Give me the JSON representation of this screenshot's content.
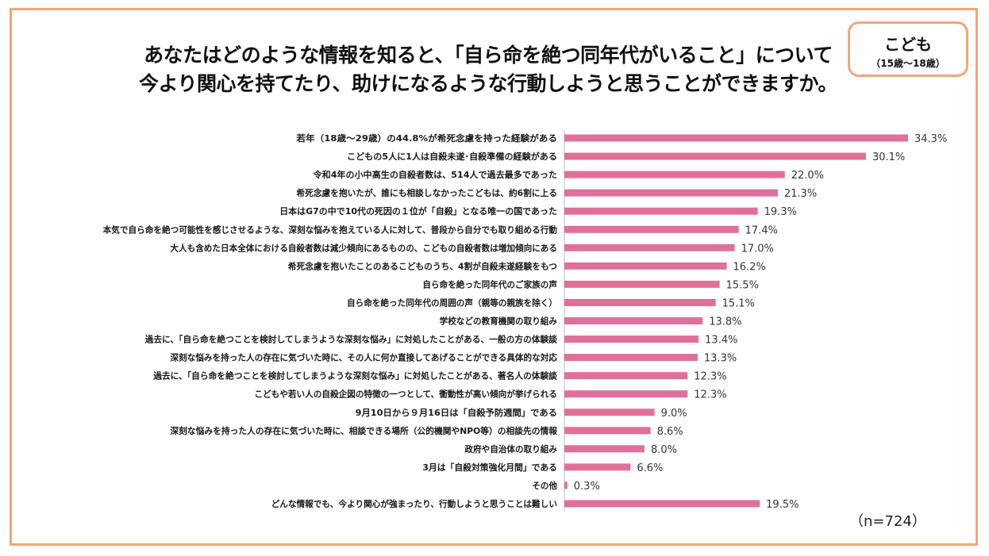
{
  "title": {
    "line1": "あなたはどのような情報を知ると、「自ら命を絶つ同年代がいること」について",
    "line2": "今より関心を持てたり、助けになるような行動しようと思うことができますか。"
  },
  "badge": {
    "main": "こども",
    "sub": "（15歳〜18歳）"
  },
  "sample_note": "（n=724）",
  "colors": {
    "bar": "#e0709a",
    "border": "#f0a77a"
  },
  "chart_data": {
    "type": "bar",
    "orientation": "horizontal",
    "unit": "%",
    "xlim": [
      0,
      35
    ],
    "categories": [
      "若年（18歳〜29歳）の44.8%が希死念慮を持った経験がある",
      "こどもの5人に1人は自殺未遂･自殺準備の経験がある",
      "令和4年の小中高生の自殺者数は、514人で過去最多であった",
      "希死念慮を抱いたが、誰にも相談しなかったこどもは、約6割に上る",
      "日本はG7の中で10代の死因の１位が「自殺」となる唯一の国であった",
      "本気で自ら命を絶つ可能性を感じさせるような、深刻な悩みを抱えている人に対して、普段から自分でも取り組める行動",
      "大人も含めた日本全体における自殺者数は減少傾向にあるものの、こどもの自殺者数は増加傾向にある",
      "希死念慮を抱いたことのあるこどものうち、4割が自殺未遂経験をもつ",
      "自ら命を絶った同年代のご家族の声",
      "自ら命を絶った同年代の周囲の声（親等の親族を除く）",
      "学校などの教育機関の取り組み",
      "過去に、「自ら命を絶つことを検討してしまうような深刻な悩み」に対処したことがある、一般の方の体験談",
      "深刻な悩みを持った人の存在に気づいた時に、その人に何か直接してあげることができる具体的な対応",
      "過去に、「自ら命を絶つことを検討してしまうような深刻な悩み」に対処したことがある、著名人の体験談",
      "こどもや若い人の自殺企図の特徴の一つとして、衝動性が高い傾向が挙げられる",
      "9月10日から９月16日は「自殺予防週間」である",
      "深刻な悩みを持った人の存在に気づいた時に、相談できる場所（公的機関やNPO等）の相談先の情報",
      "政府や自治体の取り組み",
      "3月は「自殺対策強化月間」である",
      "その他",
      "どんな情報でも、今より関心が強まったり、行動しようと思うことは難しい"
    ],
    "values": [
      34.3,
      30.1,
      22.0,
      21.3,
      19.3,
      17.4,
      17.0,
      16.2,
      15.5,
      15.1,
      13.8,
      13.4,
      13.3,
      12.3,
      12.3,
      9.0,
      8.6,
      8.0,
      6.6,
      0.3,
      19.5
    ],
    "value_labels": [
      "34.3%",
      "30.1%",
      "22.0%",
      "21.3%",
      "19.3%",
      "17.4%",
      "17.0%",
      "16.2%",
      "15.5%",
      "15.1%",
      "13.8%",
      "13.4%",
      "13.3%",
      "12.3%",
      "12.3%",
      "9.0%",
      "8.6%",
      "8.0%",
      "6.6%",
      "0.3%",
      "19.5%"
    ]
  }
}
